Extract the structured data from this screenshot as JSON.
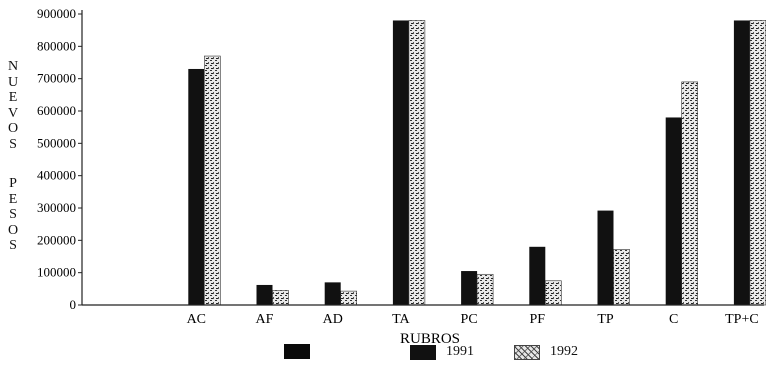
{
  "chart_data": {
    "type": "bar",
    "categories": [
      "",
      "AC",
      "AF",
      "AD",
      "TA",
      "PC",
      "PF",
      "TP",
      "C",
      "TP+C"
    ],
    "series": [
      {
        "name": "",
        "values": [
          0,
          0,
          0,
          0,
          0,
          0,
          0,
          0,
          0,
          0
        ]
      },
      {
        "name": "1991",
        "values": [
          0,
          730000,
          62000,
          70000,
          880000,
          105000,
          180000,
          292000,
          580000,
          880000
        ]
      },
      {
        "name": "1992",
        "values": [
          0,
          770000,
          45000,
          43000,
          880000,
          95000,
          75000,
          172000,
          690000,
          880000
        ]
      }
    ],
    "xlabel": "RUBROS",
    "ylabel": "NUEVOS PESOS",
    "ylim": [
      0,
      900000
    ],
    "yticks": [
      "0",
      "100000",
      "200000",
      "300000",
      "400000",
      "500000",
      "600000",
      "700000",
      "800000",
      "900000"
    ],
    "legend_position": "bottom",
    "colors": {
      "series_dark": "#111111",
      "series_light": "#d9d9d9",
      "axis": "#222222"
    }
  }
}
